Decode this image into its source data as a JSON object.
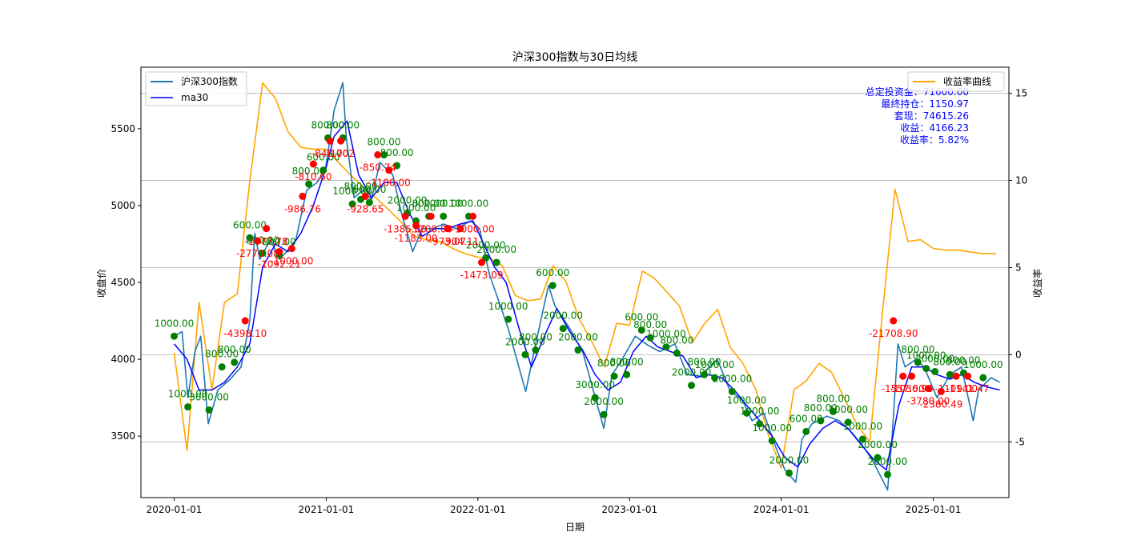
{
  "chart_data": {
    "type": "line",
    "title": "沪深300指数与30日均线",
    "xlabel": "日期",
    "ylabel": "收盘价",
    "y2label": "收益率",
    "xlim": [
      "2019-10-13",
      "2025-07-02"
    ],
    "ylim": [
      3100,
      5900
    ],
    "y2lim": [
      -8.2,
      16.5
    ],
    "x_ticks": [
      "2020-01-01",
      "2021-01-01",
      "2022-01-01",
      "2023-01-01",
      "2024-01-01",
      "2025-01-01"
    ],
    "y_ticks": [
      3500,
      4000,
      4500,
      5000,
      5500
    ],
    "y2_ticks": [
      -5,
      0,
      5,
      10,
      15
    ],
    "grid": "secondary-y",
    "legend_left": [
      "沪深300指数",
      "ma30"
    ],
    "legend_right": [
      "收益率曲线"
    ],
    "colors": {
      "price": "#1f77b4",
      "ma30": "#0000ff",
      "yield": "#ffa500",
      "buy": "#008000",
      "sell": "#ff0000",
      "summary": "#0000ff"
    },
    "summary": [
      "总定投资金：71600.00",
      "最终持仓：1150.97",
      "套现：74615.26",
      "收益：4166.23",
      "收益率：5.82%"
    ],
    "series": [
      {
        "name": "沪深300指数",
        "axis": "left",
        "x": [
          "2020-01-01",
          "2020-01-20",
          "2020-02-03",
          "2020-02-20",
          "2020-03-05",
          "2020-03-23",
          "2020-04-15",
          "2020-05-15",
          "2020-06-10",
          "2020-07-01",
          "2020-07-13",
          "2020-07-25",
          "2020-08-20",
          "2020-09-10",
          "2020-09-28",
          "2020-10-20",
          "2020-11-15",
          "2020-12-10",
          "2020-12-31",
          "2021-01-20",
          "2021-02-10",
          "2021-02-18",
          "2021-03-09",
          "2021-03-30",
          "2021-04-20",
          "2021-05-10",
          "2021-06-10",
          "2021-07-01",
          "2021-07-28",
          "2021-08-20",
          "2021-09-15",
          "2021-10-10",
          "2021-11-10",
          "2021-12-15",
          "2022-01-05",
          "2022-01-28",
          "2022-03-15",
          "2022-04-26",
          "2022-05-20",
          "2022-06-20",
          "2022-07-05",
          "2022-08-10",
          "2022-09-10",
          "2022-10-31",
          "2022-11-20",
          "2022-12-10",
          "2023-01-15",
          "2023-02-15",
          "2023-03-15",
          "2023-04-20",
          "2023-05-20",
          "2023-06-20",
          "2023-07-31",
          "2023-08-30",
          "2023-09-30",
          "2023-10-23",
          "2023-11-20",
          "2023-12-20",
          "2024-01-10",
          "2024-02-05",
          "2024-02-20",
          "2024-03-15",
          "2024-04-20",
          "2024-05-20",
          "2024-06-20",
          "2024-07-20",
          "2024-08-10",
          "2024-09-13",
          "2024-09-24",
          "2024-10-08",
          "2024-10-25",
          "2024-11-20",
          "2024-12-10",
          "2025-01-10",
          "2025-02-10",
          "2025-03-10",
          "2025-04-07",
          "2025-04-20",
          "2025-05-20",
          "2025-06-10"
        ],
        "y": [
          4150,
          4180,
          3750,
          4050,
          4150,
          3580,
          3800,
          3870,
          3950,
          4250,
          4820,
          4650,
          4780,
          4650,
          4700,
          4780,
          5100,
          5150,
          5250,
          5620,
          5800,
          5450,
          5050,
          5100,
          5040,
          5280,
          5200,
          4950,
          4700,
          4850,
          4850,
          4880,
          4850,
          4900,
          4850,
          4560,
          4200,
          3790,
          4100,
          4480,
          4350,
          4200,
          4050,
          3550,
          3900,
          3980,
          4150,
          4090,
          4050,
          4100,
          3900,
          3890,
          4000,
          3800,
          3730,
          3600,
          3650,
          3420,
          3280,
          3200,
          3480,
          3580,
          3630,
          3600,
          3520,
          3420,
          3330,
          3150,
          3500,
          4100,
          3950,
          4000,
          3950,
          3750,
          3900,
          3950,
          3600,
          3800,
          3880,
          3850
        ]
      },
      {
        "name": "ma30",
        "axis": "left",
        "x": [
          "2020-01-01",
          "2020-02-01",
          "2020-03-01",
          "2020-04-01",
          "2020-05-01",
          "2020-06-01",
          "2020-07-01",
          "2020-08-01",
          "2020-09-01",
          "2020-10-01",
          "2020-11-01",
          "2020-12-01",
          "2021-01-01",
          "2021-01-20",
          "2021-02-20",
          "2021-03-20",
          "2021-04-20",
          "2021-05-20",
          "2021-06-20",
          "2021-07-20",
          "2021-08-20",
          "2021-09-20",
          "2021-10-20",
          "2021-11-20",
          "2021-12-20",
          "2022-01-10",
          "2022-02-10",
          "2022-03-10",
          "2022-04-10",
          "2022-05-10",
          "2022-06-10",
          "2022-07-10",
          "2022-08-10",
          "2022-09-10",
          "2022-10-10",
          "2022-11-10",
          "2022-12-10",
          "2023-01-10",
          "2023-02-10",
          "2023-03-10",
          "2023-04-10",
          "2023-05-10",
          "2023-06-10",
          "2023-07-10",
          "2023-08-10",
          "2023-09-10",
          "2023-10-10",
          "2023-11-10",
          "2023-12-10",
          "2024-01-10",
          "2024-02-10",
          "2024-03-10",
          "2024-04-10",
          "2024-05-10",
          "2024-06-10",
          "2024-07-10",
          "2024-08-10",
          "2024-09-10",
          "2024-10-10",
          "2024-11-10",
          "2024-12-10",
          "2025-01-10",
          "2025-02-10",
          "2025-03-10",
          "2025-04-10",
          "2025-05-10",
          "2025-06-10"
        ],
        "y": [
          4100,
          4000,
          3800,
          3800,
          3850,
          3950,
          4100,
          4600,
          4750,
          4700,
          4820,
          5000,
          5250,
          5450,
          5550,
          5200,
          5050,
          5150,
          5150,
          4950,
          4800,
          4850,
          4850,
          4880,
          4900,
          4780,
          4600,
          4500,
          4200,
          3950,
          4150,
          4330,
          4180,
          4060,
          3900,
          3800,
          3850,
          4050,
          4150,
          4080,
          4050,
          4020,
          3880,
          3900,
          3880,
          3800,
          3700,
          3600,
          3500,
          3360,
          3300,
          3450,
          3550,
          3600,
          3550,
          3450,
          3350,
          3280,
          3700,
          3950,
          3950,
          3900,
          3870,
          3900,
          3850,
          3820,
          3800
        ]
      },
      {
        "name": "收益率曲线",
        "axis": "right",
        "x": [
          "2020-01-01",
          "2020-02-01",
          "2020-03-01",
          "2020-04-01",
          "2020-05-01",
          "2020-06-01",
          "2020-07-01",
          "2020-08-01",
          "2020-09-01",
          "2020-10-01",
          "2020-11-01",
          "2020-12-01",
          "2021-01-01",
          "2021-02-01",
          "2021-03-01",
          "2021-04-01",
          "2021-05-01",
          "2021-06-01",
          "2021-07-01",
          "2021-08-01",
          "2021-09-01",
          "2021-10-01",
          "2021-11-01",
          "2021-12-01",
          "2022-01-01",
          "2022-02-01",
          "2022-03-01",
          "2022-04-01",
          "2022-05-01",
          "2022-06-01",
          "2022-07-01",
          "2022-08-01",
          "2022-09-01",
          "2022-10-01",
          "2022-11-01",
          "2022-12-01",
          "2023-01-01",
          "2023-02-01",
          "2023-03-01",
          "2023-04-01",
          "2023-05-01",
          "2023-06-01",
          "2023-07-01",
          "2023-08-01",
          "2023-09-01",
          "2023-10-01",
          "2023-11-01",
          "2023-12-01",
          "2024-01-01",
          "2024-02-01",
          "2024-03-01",
          "2024-04-01",
          "2024-05-01",
          "2024-06-01",
          "2024-07-01",
          "2024-08-01",
          "2024-09-01",
          "2024-10-01",
          "2024-11-01",
          "2024-12-01",
          "2025-01-01",
          "2025-02-01",
          "2025-03-01",
          "2025-04-01",
          "2025-05-01",
          "2025-06-01"
        ],
        "y": [
          0.1,
          -5.5,
          3.0,
          -2.0,
          3.0,
          3.5,
          10.0,
          15.6,
          14.7,
          12.8,
          11.9,
          11.8,
          11.8,
          11.0,
          10.3,
          9.6,
          9.0,
          8.3,
          7.6,
          6.8,
          6.6,
          6.5,
          6.1,
          5.8,
          5.6,
          5.5,
          5.1,
          3.4,
          3.1,
          3.2,
          5.1,
          4.2,
          2.1,
          0.8,
          -0.7,
          1.8,
          1.7,
          4.8,
          4.4,
          3.6,
          2.8,
          0.7,
          1.8,
          2.6,
          0.4,
          -0.5,
          -2.0,
          -4.6,
          -6.5,
          -2.0,
          -1.5,
          -0.5,
          -1.0,
          -2.5,
          -4.0,
          -5.0,
          2.5,
          9.5,
          6.5,
          6.6,
          6.1,
          6.0,
          6.0,
          5.9,
          5.8,
          5.8
        ]
      }
    ],
    "buy_points": [
      {
        "x": "2020-01-01",
        "y": 4150,
        "label": "1000.00"
      },
      {
        "x": "2020-02-03",
        "y": 3690,
        "label": "1000.00"
      },
      {
        "x": "2020-03-25",
        "y": 3670,
        "label": "3000.00"
      },
      {
        "x": "2020-04-25",
        "y": 3950,
        "label": "800.00"
      },
      {
        "x": "2020-05-25",
        "y": 3980,
        "label": "800.00"
      },
      {
        "x": "2020-07-01",
        "y": 4790,
        "label": "600.00"
      },
      {
        "x": "2020-08-01",
        "y": 4690,
        "label": "800.00"
      },
      {
        "x": "2020-09-10",
        "y": 4680,
        "label": "800.00"
      },
      {
        "x": "2020-11-20",
        "y": 5140,
        "label": "800.00"
      },
      {
        "x": "2020-12-25",
        "y": 5230,
        "label": "600.00"
      },
      {
        "x": "2021-01-05",
        "y": 5440,
        "label": "800.00"
      },
      {
        "x": "2021-02-10",
        "y": 5440,
        "label": "800.00"
      },
      {
        "x": "2021-03-05",
        "y": 5010,
        "label": "1000.00"
      },
      {
        "x": "2021-03-25",
        "y": 5040,
        "label": "800.00"
      },
      {
        "x": "2021-04-15",
        "y": 5020,
        "label": "600.00"
      },
      {
        "x": "2021-05-20",
        "y": 5330,
        "label": "800.00"
      },
      {
        "x": "2021-06-20",
        "y": 5260,
        "label": "800.00"
      },
      {
        "x": "2021-07-15",
        "y": 4950,
        "label": "2000.00"
      },
      {
        "x": "2021-08-05",
        "y": 4900,
        "label": "1000.00"
      },
      {
        "x": "2021-09-05",
        "y": 4930,
        "label": "800.00"
      },
      {
        "x": "2021-10-10",
        "y": 4930,
        "label": "2000.00"
      },
      {
        "x": "2021-12-10",
        "y": 4930,
        "label": "1000.00"
      },
      {
        "x": "2022-01-20",
        "y": 4660,
        "label": "2000.00"
      },
      {
        "x": "2022-02-15",
        "y": 4630,
        "label": "2000.00"
      },
      {
        "x": "2022-03-15",
        "y": 4260,
        "label": "1000.00"
      },
      {
        "x": "2022-04-25",
        "y": 4030,
        "label": "2000.00"
      },
      {
        "x": "2022-05-20",
        "y": 4060,
        "label": "800.00"
      },
      {
        "x": "2022-06-30",
        "y": 4480,
        "label": "600.00"
      },
      {
        "x": "2022-07-25",
        "y": 4200,
        "label": "2000.00"
      },
      {
        "x": "2022-08-30",
        "y": 4060,
        "label": "2000.00"
      },
      {
        "x": "2022-10-10",
        "y": 3750,
        "label": "3000.00"
      },
      {
        "x": "2022-10-31",
        "y": 3640,
        "label": "2000.00"
      },
      {
        "x": "2022-11-25",
        "y": 3890,
        "label": "800.00"
      },
      {
        "x": "2022-12-25",
        "y": 3900,
        "label": "800.00"
      },
      {
        "x": "2023-01-30",
        "y": 4190,
        "label": "600.00"
      },
      {
        "x": "2023-02-20",
        "y": 4140,
        "label": "800.00"
      },
      {
        "x": "2023-03-30",
        "y": 4080,
        "label": "1000.00"
      },
      {
        "x": "2023-04-25",
        "y": 4040,
        "label": "800.00"
      },
      {
        "x": "2023-05-30",
        "y": 3830,
        "label": "2000.00"
      },
      {
        "x": "2023-06-30",
        "y": 3900,
        "label": "800.00"
      },
      {
        "x": "2023-07-25",
        "y": 3880,
        "label": "1000.00"
      },
      {
        "x": "2023-09-05",
        "y": 3790,
        "label": "2000.00"
      },
      {
        "x": "2023-10-10",
        "y": 3650,
        "label": "1000.00"
      },
      {
        "x": "2023-11-10",
        "y": 3580,
        "label": "1000.00"
      },
      {
        "x": "2023-12-10",
        "y": 3470,
        "label": "1000.00"
      },
      {
        "x": "2024-01-20",
        "y": 3260,
        "label": "2000.00"
      },
      {
        "x": "2024-03-01",
        "y": 3530,
        "label": "600.00"
      },
      {
        "x": "2024-04-05",
        "y": 3600,
        "label": "800.00"
      },
      {
        "x": "2024-05-05",
        "y": 3660,
        "label": "800.00"
      },
      {
        "x": "2024-06-10",
        "y": 3590,
        "label": "1000.00"
      },
      {
        "x": "2024-07-15",
        "y": 3480,
        "label": "1000.00"
      },
      {
        "x": "2024-08-20",
        "y": 3360,
        "label": "2000.00"
      },
      {
        "x": "2024-09-13",
        "y": 3250,
        "label": "2000.00"
      },
      {
        "x": "2024-11-25",
        "y": 3980,
        "label": "800.00"
      },
      {
        "x": "2024-12-15",
        "y": 3940,
        "label": "1000.00"
      },
      {
        "x": "2025-01-05",
        "y": 3920,
        "label": "2000.00"
      },
      {
        "x": "2025-02-10",
        "y": 3900,
        "label": "800.00"
      },
      {
        "x": "2025-03-15",
        "y": 3910,
        "label": "800.00"
      },
      {
        "x": "2025-05-01",
        "y": 3880,
        "label": "1000.00"
      }
    ],
    "sell_points": [
      {
        "x": "2020-06-20",
        "y": 4250,
        "label": "-4398.10"
      },
      {
        "x": "2020-07-20",
        "y": 4770,
        "label": "-2770.08"
      },
      {
        "x": "2020-08-10",
        "y": 4850,
        "label": "-1677.78"
      },
      {
        "x": "2020-09-10",
        "y": 4700,
        "label": "-1092.21"
      },
      {
        "x": "2020-10-10",
        "y": 4720,
        "label": "-1000.00"
      },
      {
        "x": "2020-11-05",
        "y": 5060,
        "label": "-986.76"
      },
      {
        "x": "2020-12-01",
        "y": 5270,
        "label": "-810.60"
      },
      {
        "x": "2021-01-10",
        "y": 5420,
        "label": "-840.00"
      },
      {
        "x": "2021-02-05",
        "y": 5420,
        "label": "-1702"
      },
      {
        "x": "2021-04-05",
        "y": 5060,
        "label": "-928.65"
      },
      {
        "x": "2021-05-05",
        "y": 5330,
        "label": "-850.74"
      },
      {
        "x": "2021-06-01",
        "y": 5230,
        "label": "-1100.00"
      },
      {
        "x": "2021-07-10",
        "y": 4930,
        "label": "-1385.00"
      },
      {
        "x": "2021-08-05",
        "y": 4870,
        "label": "-1183.00"
      },
      {
        "x": "2021-09-10",
        "y": 4930,
        "label": "-1200.00"
      },
      {
        "x": "2021-10-20",
        "y": 4850,
        "label": "-973.07"
      },
      {
        "x": "2021-11-20",
        "y": 4850,
        "label": "-904.11"
      },
      {
        "x": "2021-12-20",
        "y": 4930,
        "label": "-1000.00"
      },
      {
        "x": "2022-01-10",
        "y": 4630,
        "label": "-1473.09"
      },
      {
        "x": "2024-09-27",
        "y": 4250,
        "label": "-21708.90"
      },
      {
        "x": "2024-10-20",
        "y": 3890,
        "label": "-1557.00"
      },
      {
        "x": "2024-11-10",
        "y": 3890,
        "label": "-1036.96"
      },
      {
        "x": "2024-12-20",
        "y": 3810,
        "label": "-3780.00"
      },
      {
        "x": "2025-01-20",
        "y": 3790,
        "label": "-2380.49"
      },
      {
        "x": "2025-02-25",
        "y": 3890,
        "label": "-1109.00"
      },
      {
        "x": "2025-03-25",
        "y": 3890,
        "label": "-1141.47"
      }
    ]
  }
}
